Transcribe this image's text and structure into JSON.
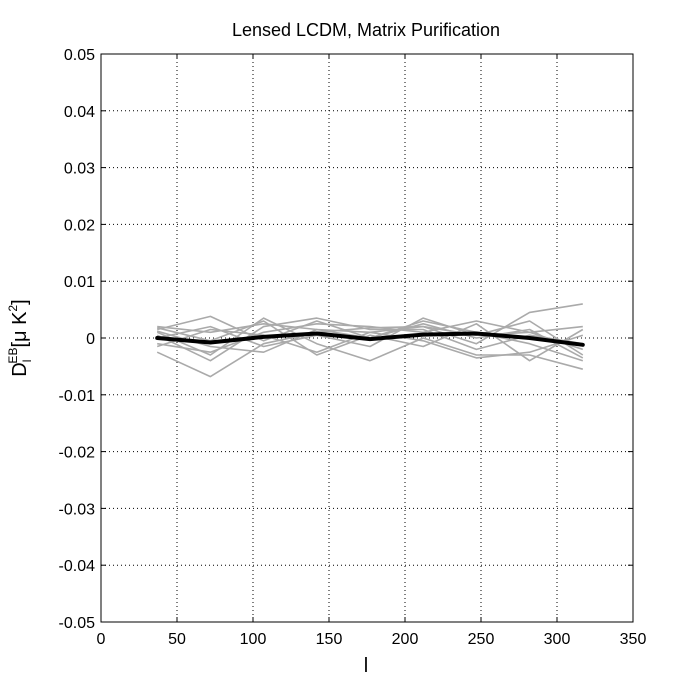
{
  "chart_data": {
    "type": "line",
    "title": "Lensed LCDM, Matrix Purification",
    "xlabel": "l",
    "ylabel": {
      "main": "D",
      "sub": "l",
      "sup": "EB",
      "unit_prefix": "[μ K",
      "unit_sup": "2",
      "unit_suffix": "]"
    },
    "xlim": [
      0,
      350
    ],
    "ylim": [
      -0.05,
      0.05
    ],
    "xticks": [
      0,
      50,
      100,
      150,
      200,
      250,
      300,
      350
    ],
    "yticks": [
      0.05,
      0.04,
      0.03,
      0.02,
      0.01,
      0,
      -0.01,
      -0.02,
      -0.03,
      -0.04,
      -0.05
    ],
    "grid": true,
    "x": [
      37,
      72,
      107,
      142,
      177,
      212,
      247,
      282,
      317
    ],
    "mean_color": "#000000",
    "realization_color": "#aaaaaa",
    "mean": [
      0.0,
      -0.0008,
      0.0002,
      0.0008,
      -0.0002,
      0.0006,
      0.0008,
      0.0,
      -0.0012
    ],
    "realizations": [
      [
        0.002,
        0.001,
        0.0025,
        0.0015,
        0.001,
        0.002,
        0.0005,
        0.001,
        0.002
      ],
      [
        -0.0025,
        -0.0068,
        -0.001,
        0.001,
        0.0018,
        0.002,
        -0.001,
        0.0045,
        0.006
      ],
      [
        0.001,
        -0.003,
        0.0035,
        -0.001,
        -0.004,
        0.0,
        -0.003,
        -0.003,
        -0.0055
      ],
      [
        0.0015,
        0.0038,
        -0.0005,
        0.003,
        0.0,
        0.003,
        0.001,
        -0.001,
        -0.004
      ],
      [
        -0.001,
        -0.0025,
        0.001,
        0.0025,
        0.002,
        0.001,
        0.003,
        0.001,
        -0.002
      ],
      [
        0.0018,
        -0.0005,
        0.003,
        -0.003,
        0.0005,
        -0.0015,
        0.0025,
        -0.004,
        0.0015
      ],
      [
        0.0,
        0.002,
        -0.0015,
        0.0005,
        -0.0015,
        0.0035,
        0.0005,
        0.003,
        -0.003
      ],
      [
        -0.0015,
        0.0015,
        0.0005,
        -0.0025,
        0.001,
        -0.0005,
        -0.0035,
        -0.0025,
        0.0005
      ],
      [
        0.0005,
        -0.004,
        0.002,
        0.0035,
        0.0015,
        0.0015,
        -0.002,
        0.0005,
        -0.001
      ],
      [
        0.0012,
        -0.0015,
        -0.0025,
        0.0015,
        0.0,
        0.0025,
        0.0,
        0.0015,
        -0.0035
      ]
    ]
  }
}
